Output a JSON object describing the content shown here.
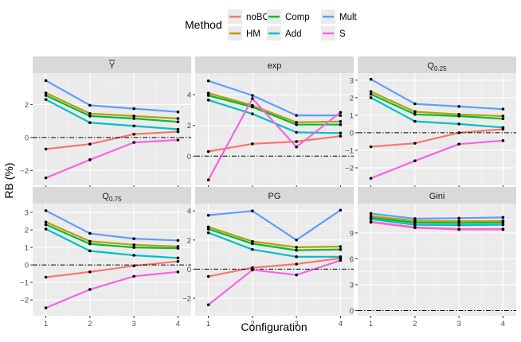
{
  "legend": {
    "title": "Method",
    "entries": [
      {
        "name": "noBC",
        "color": "#F8766D"
      },
      {
        "name": "Comp",
        "color": "#00BA38"
      },
      {
        "name": "Mult",
        "color": "#619CFF"
      },
      {
        "name": "HM",
        "color": "#B79F00"
      },
      {
        "name": "Add",
        "color": "#00BFC4"
      },
      {
        "name": "S",
        "color": "#F564E3"
      }
    ]
  },
  "axes": {
    "xlabel": "Configuration",
    "ylabel": "RB (%)"
  },
  "chart_data": {
    "type": "line",
    "x": [
      1,
      2,
      3,
      4
    ],
    "reference_line": 0,
    "panels": [
      {
        "title": "Ȳ",
        "ylim": [
          -2.9,
          3.9
        ],
        "yticks": [
          -2,
          0,
          2
        ],
        "series": [
          {
            "name": "noBC",
            "values": [
              -0.7,
              -0.4,
              0.2,
              0.35
            ]
          },
          {
            "name": "HM",
            "values": [
              2.7,
              1.45,
              1.3,
              1.15
            ]
          },
          {
            "name": "Comp",
            "values": [
              2.55,
              1.3,
              1.15,
              0.95
            ]
          },
          {
            "name": "Add",
            "values": [
              2.3,
              0.9,
              0.7,
              0.5
            ]
          },
          {
            "name": "Mult",
            "values": [
              3.45,
              1.95,
              1.75,
              1.55
            ]
          },
          {
            "name": "S",
            "values": [
              -2.45,
              -1.35,
              -0.3,
              -0.15
            ]
          }
        ]
      },
      {
        "title": "exp",
        "ylim": [
          -1.9,
          5.4
        ],
        "yticks": [
          0,
          2,
          4
        ],
        "series": [
          {
            "name": "noBC",
            "values": [
              0.3,
              0.8,
              0.95,
              1.3
            ]
          },
          {
            "name": "HM",
            "values": [
              4.1,
              3.3,
              2.2,
              2.25
            ]
          },
          {
            "name": "Comp",
            "values": [
              3.95,
              3.2,
              2.05,
              2.05
            ]
          },
          {
            "name": "Add",
            "values": [
              3.65,
              2.75,
              1.55,
              1.5
            ]
          },
          {
            "name": "Mult",
            "values": [
              4.9,
              3.95,
              2.65,
              2.65
            ]
          },
          {
            "name": "S",
            "values": [
              -1.55,
              3.75,
              0.6,
              2.85
            ]
          }
        ]
      },
      {
        "title": "Q0.25",
        "ylim": [
          -3.0,
          3.4
        ],
        "yticks": [
          -2,
          -1,
          0,
          1,
          2,
          3
        ],
        "series": [
          {
            "name": "noBC",
            "values": [
              -0.8,
              -0.6,
              0.0,
              0.2
            ]
          },
          {
            "name": "HM",
            "values": [
              2.35,
              1.2,
              1.05,
              0.95
            ]
          },
          {
            "name": "Comp",
            "values": [
              2.2,
              1.05,
              0.95,
              0.8
            ]
          },
          {
            "name": "Add",
            "values": [
              2.0,
              0.65,
              0.5,
              0.3
            ]
          },
          {
            "name": "Mult",
            "values": [
              3.05,
              1.65,
              1.5,
              1.35
            ]
          },
          {
            "name": "S",
            "values": [
              -2.6,
              -1.6,
              -0.65,
              -0.45
            ]
          }
        ]
      },
      {
        "title": "Q0.75",
        "ylim": [
          -2.9,
          3.5
        ],
        "yticks": [
          -2,
          -1,
          0,
          1,
          2,
          3
        ],
        "series": [
          {
            "name": "noBC",
            "values": [
              -0.7,
              -0.4,
              -0.05,
              0.2
            ]
          },
          {
            "name": "HM",
            "values": [
              2.45,
              1.35,
              1.15,
              1.05
            ]
          },
          {
            "name": "Comp",
            "values": [
              2.3,
              1.2,
              1.0,
              0.95
            ]
          },
          {
            "name": "Add",
            "values": [
              2.05,
              0.8,
              0.55,
              0.4
            ]
          },
          {
            "name": "Mult",
            "values": [
              3.1,
              1.8,
              1.5,
              1.4
            ]
          },
          {
            "name": "S",
            "values": [
              -2.45,
              -1.4,
              -0.65,
              -0.4
            ]
          }
        ]
      },
      {
        "title": "PG",
        "ylim": [
          -3.2,
          4.5
        ],
        "yticks": [
          -2,
          0,
          2,
          4
        ],
        "series": [
          {
            "name": "noBC",
            "values": [
              -0.5,
              0.1,
              0.35,
              0.75
            ]
          },
          {
            "name": "HM",
            "values": [
              2.9,
              1.9,
              1.5,
              1.55
            ]
          },
          {
            "name": "Comp",
            "values": [
              2.75,
              1.75,
              1.3,
              1.35
            ]
          },
          {
            "name": "Add",
            "values": [
              2.5,
              1.35,
              0.85,
              0.85
            ]
          },
          {
            "name": "Mult",
            "values": [
              3.7,
              4.0,
              2.0,
              4.05
            ]
          },
          {
            "name": "S",
            "values": [
              -2.45,
              -0.05,
              -0.4,
              0.6
            ]
          }
        ]
      },
      {
        "title": "Gini",
        "ylim": [
          -0.6,
          12.4
        ],
        "yticks": [
          0,
          3,
          6,
          9
        ],
        "series": [
          {
            "name": "noBC",
            "values": [
              10.3,
              9.65,
              9.45,
              9.45
            ]
          },
          {
            "name": "HM",
            "values": [
              10.95,
              10.4,
              10.35,
              10.4
            ]
          },
          {
            "name": "Comp",
            "values": [
              10.75,
              10.2,
              10.15,
              10.2
            ]
          },
          {
            "name": "Add",
            "values": [
              10.6,
              9.95,
              9.9,
              9.95
            ]
          },
          {
            "name": "Mult",
            "values": [
              11.25,
              10.65,
              10.7,
              10.8
            ]
          },
          {
            "name": "S",
            "values": [
              10.25,
              9.6,
              9.4,
              9.4
            ]
          }
        ]
      }
    ]
  }
}
